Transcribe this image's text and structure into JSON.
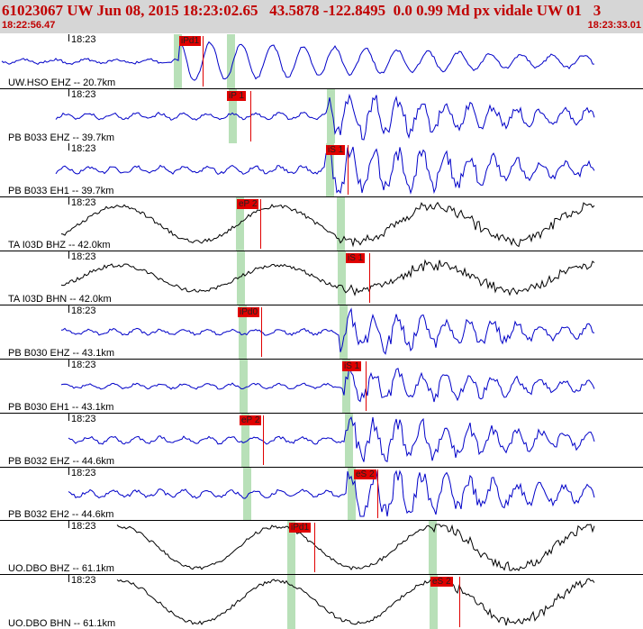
{
  "header": {
    "title": "61023067 UW Jun 08, 2015 18:23:02.65   43.5878 -122.8495  0.0 0.99 Md px vidale UW 01   3",
    "start_time": "18:22:56.47",
    "end_time": "18:23:33.01"
  },
  "colors": {
    "header_bg": "#d6d6d6",
    "header_text": "#c00000",
    "trace_blue": "#0000c8",
    "trace_black": "#000000",
    "pick_red": "#e00000",
    "window_green": "#b8e0b8"
  },
  "traces": [
    {
      "tick_label": "18:23",
      "station": "UW.HSO EHZ -- 20.7km",
      "color": "blue",
      "pick": "iPd1"
    },
    {
      "tick_label": "18:23",
      "station": "PB B033 EHZ -- 39.7km",
      "color": "blue",
      "pick": "iP 1"
    },
    {
      "tick_label": "18:23",
      "station": "PB B033 EH1 -- 39.7km",
      "color": "blue",
      "pick": "iS 1"
    },
    {
      "tick_label": "18:23",
      "station": "TA I03D BHZ -- 42.0km",
      "color": "black",
      "pick": "eP 2"
    },
    {
      "tick_label": "18:23",
      "station": "TA I03D BHN -- 42.0km",
      "color": "black",
      "pick": "iS 1"
    },
    {
      "tick_label": "18:23",
      "station": "PB B030 EHZ -- 43.1km",
      "color": "blue",
      "pick": "iPd0"
    },
    {
      "tick_label": "18:23",
      "station": "PB B030 EH1 -- 43.1km",
      "color": "blue",
      "pick": "iS 1"
    },
    {
      "tick_label": "18:23",
      "station": "PB B032 EHZ -- 44.6km",
      "color": "blue",
      "pick": "eP 2"
    },
    {
      "tick_label": "18:23",
      "station": "PB B032 EH2 -- 44.6km",
      "color": "blue",
      "pick": "eS 2"
    },
    {
      "tick_label": "18:23",
      "station": "UO.DBO BHZ -- 61.1km",
      "color": "black",
      "pick": "iPd1"
    },
    {
      "tick_label": "18:23",
      "station": "UO.DBO BHN -- 61.1km",
      "color": "black",
      "pick": "eS 2"
    }
  ]
}
